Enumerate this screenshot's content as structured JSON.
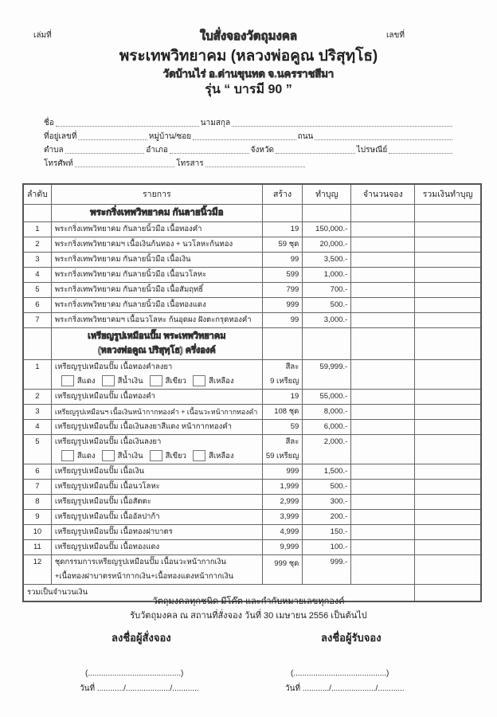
{
  "header": {
    "book_no_label": "เล่มที่",
    "number_label": "เลขที่",
    "form_title": "ใบสั่งจองวัตถุมงคล",
    "monk_name": "พระเทพวิทยาคม (หลวงพ่อคูณ ปริสุทฺโธ)",
    "temple": "วัดบ้านไร่ อ.ด่านขุนทด จ.นครราชสีมา",
    "series": "รุ่น “ บารมี 90 ”"
  },
  "fields": {
    "name": "ชื่อ",
    "surname": "นามสกุล",
    "address_no": "ที่อยู่เลขที่",
    "village": "หมู่บ้าน/ซอย",
    "road": "ถนน",
    "subdistrict": "ตำบล",
    "district": "อำเภอ",
    "province": "จังหวัด",
    "postcode": "ไปรษณีย์",
    "phone": "โทรศัพท์",
    "fax": "โทรสาร"
  },
  "table": {
    "headers": [
      "ลำดับ",
      "รายการ",
      "สร้าง",
      "ทำบุญ",
      "จำนวนจอง",
      "รวมเงินทำบุญ"
    ],
    "section1": "พระกริ่งเทพวิทยาคม กันลายนิ้วมือ",
    "rows1": [
      {
        "no": "1",
        "item": "พระกริ่งเทพวิทยาคม กันลายนิ้วมือ เนื้อทองคำ",
        "made": "19",
        "price": "150,000.-"
      },
      {
        "no": "2",
        "item": "พระกริ่งเทพวิทยาคมฯ เนื้อเงินก้นทอง + นวโลหะก้นทอง",
        "made": "59 ชุด",
        "price": "20,000.-"
      },
      {
        "no": "3",
        "item": "พระกริ่งเทพวิทยาคม กันลายนิ้วมือ เนื้อเงิน",
        "made": "99",
        "price": "3,500.-"
      },
      {
        "no": "4",
        "item": "พระกริ่งเทพวิทยาคม กันลายนิ้วมือ เนื้อนวโลหะ",
        "made": "599",
        "price": "1,000.-"
      },
      {
        "no": "5",
        "item": "พระกริ่งเทพวิทยาคม กันลายนิ้วมือ เนื้อสัมฤทธิ์",
        "made": "799",
        "price": "700.-"
      },
      {
        "no": "6",
        "item": "พระกริ่งเทพวิทยาคม กันลายนิ้วมือ เนื้อทองแดง",
        "made": "999",
        "price": "500.-"
      },
      {
        "no": "7",
        "item": "พระกริ่งเทพวิทยาคมฯ เนื้อนวโลหะ ก้นอุดผง ฝังตะกรุดทองคำ",
        "made": "99",
        "price": "3,000.-"
      }
    ],
    "section2_line1": "เหรียญรูปเหมือนปั๊ม พระเทพวิทยาคม",
    "section2_line2": "(หลวงพ่อคูณ ปริสุทฺโธ) ครึ่งองค์",
    "colors": [
      "สีแดง",
      "สีน้ำเงิน",
      "สีเขียว",
      "สีเหลือง"
    ],
    "r1": {
      "no": "1",
      "item": "เหรียญรูปเหมือนปั๊ม เนื้อทองคำลงยา",
      "made1": "สีละ",
      "made2": "9 เหรียญ",
      "price": "59,999.-"
    },
    "r2": {
      "no": "2",
      "item": "เหรียญรูปเหมือนปั๊ม เนื้อทองคำ",
      "made": "19",
      "price": "55,000.-"
    },
    "r3": {
      "no": "3",
      "item": "เหรียญรูปเหมือนฯ เนื้อเงินหน้ากากทองคำ + เนื้อนวะหน้ากากทองคำ",
      "made": "108 ชุด",
      "price": "8,000.-"
    },
    "r4": {
      "no": "4",
      "item": "เหรียญรูปเหมือนปั๊ม เนื้อเงินลงยาสีแดง หน้ากากทองคำ",
      "made": "59",
      "price": "6,000.-"
    },
    "r5": {
      "no": "5",
      "item": "เหรียญรูปเหมือนปั๊ม เนื้อเงินลงยา",
      "made1": "สีละ",
      "made2": "59 เหรียญ",
      "price": "2,000.-"
    },
    "rows2b": [
      {
        "no": "6",
        "item": "เหรียญรูปเหมือนปั๊ม เนื้อเงิน",
        "made": "999",
        "price": "1,500.-"
      },
      {
        "no": "7",
        "item": "เหรียญรูปเหมือนปั๊ม เนื้อนวโลหะ",
        "made": "1,999",
        "price": "500.-"
      },
      {
        "no": "8",
        "item": "เหรียญรูปเหมือนปั๊ม เนื้อสัตตะ",
        "made": "2,999",
        "price": "300.-"
      },
      {
        "no": "9",
        "item": "เหรียญรูปเหมือนปั๊ม เนื้ออัลปาก้า",
        "made": "3,999",
        "price": "200.-"
      },
      {
        "no": "10",
        "item": "เหรียญรูปเหมือนปั๊ม เนื้อทองฝาบาตร",
        "made": "4,999",
        "price": "150.-"
      },
      {
        "no": "11",
        "item": "เหรียญรูปเหมือนปั๊ม เนื้อทองแดง",
        "made": "9,999",
        "price": "100.-"
      }
    ],
    "r12": {
      "no": "12",
      "item1": "ชุดกรรมการเหรียญรูปเหมือนปั๊ม เนื้อนวะหน้ากากเงิน",
      "item2": "+เนื้อทองฝาบาตรหน้ากากเงิน+เนื้อทองแดงหน้ากากเงิน",
      "made": "999 ชุด",
      "price": "999.-"
    },
    "total_label": "รวมเป็นจำนวนเงิน"
  },
  "footer": {
    "note1": "วัตถุมงคลทุกชนิด มีโค๊ต และกำกับหมายเลขทุกองค์",
    "note2": "รับวัตถุมงคล ณ สถานที่สั่งจอง วันที่  30  เมษายน  2556 เป็นต้นไป",
    "orderer_sign": "ลงชื่อผู้สั่งจอง",
    "receiver_sign": "ลงชื่อผู้รับจอง",
    "sign_line": "(..........................................)",
    "date_line": "วันที่ ............/..................../............"
  }
}
